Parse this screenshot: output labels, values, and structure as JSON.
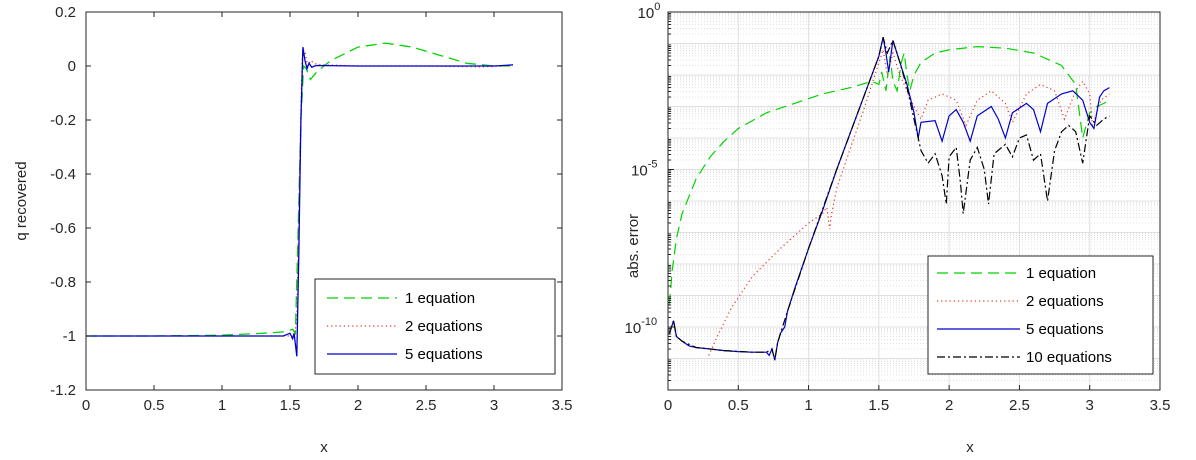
{
  "chart_data": [
    {
      "type": "line",
      "xlabel": "x",
      "ylabel": "q recovered",
      "xlim": [
        0,
        3.5
      ],
      "ylim": [
        -1.2,
        0.2
      ],
      "xticks": [
        "0",
        "0.5",
        "1",
        "1.5",
        "2",
        "2.5",
        "3",
        "3.5"
      ],
      "yticks": [
        "0.2",
        "0",
        "-0.2",
        "-0.4",
        "-0.6",
        "-0.8",
        "-1",
        "-1.2"
      ],
      "grid": false,
      "legend_position": "bottom-right",
      "series": [
        {
          "name": "1 equation",
          "color": "#00d400",
          "style": "dashed",
          "points": [
            [
              0,
              -1
            ],
            [
              0.5,
              -1
            ],
            [
              1.0,
              -0.997
            ],
            [
              1.3,
              -0.99
            ],
            [
              1.45,
              -0.985
            ],
            [
              1.52,
              -0.975
            ],
            [
              1.54,
              -0.99
            ],
            [
              1.56,
              -0.6
            ],
            [
              1.58,
              -0.2
            ],
            [
              1.6,
              0.0
            ],
            [
              1.62,
              -0.01
            ],
            [
              1.65,
              -0.05
            ],
            [
              1.7,
              -0.02
            ],
            [
              1.75,
              0.0
            ],
            [
              1.8,
              0.02
            ],
            [
              2.0,
              0.07
            ],
            [
              2.2,
              0.085
            ],
            [
              2.4,
              0.07
            ],
            [
              2.6,
              0.04
            ],
            [
              2.8,
              0.01
            ],
            [
              3.0,
              0.0
            ],
            [
              3.14,
              0.0
            ]
          ]
        },
        {
          "name": "2 equations",
          "color": "#e8352a",
          "style": "dotted",
          "points": [
            [
              0,
              -1
            ],
            [
              1.4,
              -1
            ],
            [
              1.5,
              -1.0
            ],
            [
              1.52,
              -1.01
            ],
            [
              1.55,
              -0.95
            ],
            [
              1.57,
              -0.4
            ],
            [
              1.59,
              0.03
            ],
            [
              1.61,
              0.05
            ],
            [
              1.63,
              0.0
            ],
            [
              1.65,
              0.02
            ],
            [
              1.7,
              0.005
            ],
            [
              2.0,
              0.0
            ],
            [
              2.5,
              0.0
            ],
            [
              2.9,
              -0.003
            ],
            [
              3.0,
              -0.002
            ],
            [
              3.14,
              0.004
            ]
          ]
        },
        {
          "name": "5 equations",
          "color": "#0000cc",
          "style": "solid",
          "points": [
            [
              0,
              -1
            ],
            [
              1.0,
              -1
            ],
            [
              1.45,
              -1.0
            ],
            [
              1.5,
              -0.99
            ],
            [
              1.52,
              -1.01
            ],
            [
              1.53,
              -0.99
            ],
            [
              1.55,
              -1.075
            ],
            [
              1.565,
              -0.7
            ],
            [
              1.58,
              -0.2
            ],
            [
              1.595,
              0.07
            ],
            [
              1.61,
              0.02
            ],
            [
              1.625,
              -0.01
            ],
            [
              1.64,
              0.01
            ],
            [
              1.66,
              -0.005
            ],
            [
              1.68,
              0.0
            ],
            [
              1.7,
              0.002
            ],
            [
              2.0,
              0.0
            ],
            [
              3.0,
              0.0
            ],
            [
              3.14,
              0.004
            ]
          ]
        }
      ]
    },
    {
      "type": "line",
      "xlabel": "x",
      "ylabel": "abs. error",
      "xlim": [
        0,
        3.5
      ],
      "ylim_log10": [
        -12,
        0
      ],
      "yscale": "log",
      "xticks": [
        "0",
        "0.5",
        "1",
        "1.5",
        "2",
        "2.5",
        "3",
        "3.5"
      ],
      "yticks": [
        {
          "base": "10",
          "exp": "0",
          "value": 0
        },
        {
          "base": "10",
          "exp": "-5",
          "value": -5
        },
        {
          "base": "10",
          "exp": "-10",
          "value": -10
        }
      ],
      "grid": true,
      "legend_position": "bottom-right",
      "series": [
        {
          "name": "1 equation",
          "color": "#00d400",
          "style": "dashed",
          "points_log10": [
            [
              0.01,
              -9.3
            ],
            [
              0.03,
              -8.2
            ],
            [
              0.06,
              -7.2
            ],
            [
              0.1,
              -6.4
            ],
            [
              0.2,
              -5.3
            ],
            [
              0.3,
              -4.6
            ],
            [
              0.4,
              -4.1
            ],
            [
              0.5,
              -3.7
            ],
            [
              0.7,
              -3.2
            ],
            [
              0.9,
              -2.9
            ],
            [
              1.1,
              -2.6
            ],
            [
              1.3,
              -2.4
            ],
            [
              1.45,
              -2.2
            ],
            [
              1.5,
              -2.3
            ],
            [
              1.52,
              -1.9
            ],
            [
              1.55,
              -2.5
            ],
            [
              1.58,
              -1.4
            ],
            [
              1.6,
              -2.2
            ],
            [
              1.63,
              -2.5
            ],
            [
              1.66,
              -1.6
            ],
            [
              1.68,
              -1.3
            ],
            [
              1.7,
              -2.0
            ],
            [
              1.72,
              -2.5
            ],
            [
              1.75,
              -2.0
            ],
            [
              1.8,
              -1.6
            ],
            [
              1.9,
              -1.3
            ],
            [
              2.0,
              -1.2
            ],
            [
              2.2,
              -1.1
            ],
            [
              2.4,
              -1.15
            ],
            [
              2.6,
              -1.3
            ],
            [
              2.8,
              -1.7
            ],
            [
              2.9,
              -2.3
            ],
            [
              2.95,
              -4.0
            ],
            [
              3.0,
              -3.2
            ],
            [
              3.05,
              -3.0
            ],
            [
              3.1,
              -2.9
            ],
            [
              3.14,
              -2.8
            ]
          ]
        },
        {
          "name": "2 equations",
          "color": "#e8352a",
          "style": "dotted",
          "points_log10": [
            [
              0.29,
              -10.9
            ],
            [
              0.35,
              -10.3
            ],
            [
              0.45,
              -9.4
            ],
            [
              0.6,
              -8.4
            ],
            [
              0.8,
              -7.5
            ],
            [
              1.0,
              -6.7
            ],
            [
              1.1,
              -6.4
            ],
            [
              1.13,
              -6.2
            ],
            [
              1.15,
              -6.9
            ],
            [
              1.16,
              -6.5
            ],
            [
              1.2,
              -5.6
            ],
            [
              1.3,
              -4.3
            ],
            [
              1.4,
              -3.0
            ],
            [
              1.5,
              -1.6
            ],
            [
              1.53,
              -1.2
            ],
            [
              1.56,
              -2.0
            ],
            [
              1.6,
              -1.3
            ],
            [
              1.65,
              -2.0
            ],
            [
              1.7,
              -2.5
            ],
            [
              1.75,
              -3.0
            ],
            [
              1.8,
              -3.4
            ],
            [
              1.85,
              -2.8
            ],
            [
              1.95,
              -2.6
            ],
            [
              2.05,
              -2.8
            ],
            [
              2.12,
              -3.6
            ],
            [
              2.2,
              -2.8
            ],
            [
              2.3,
              -2.5
            ],
            [
              2.4,
              -2.9
            ],
            [
              2.45,
              -3.5
            ],
            [
              2.55,
              -2.6
            ],
            [
              2.65,
              -2.3
            ],
            [
              2.75,
              -2.5
            ],
            [
              2.82,
              -3.4
            ],
            [
              2.9,
              -2.5
            ],
            [
              2.95,
              -2.2
            ],
            [
              3.0,
              -2.6
            ],
            [
              3.02,
              -3.6
            ],
            [
              3.08,
              -2.8
            ],
            [
              3.14,
              -2.6
            ]
          ]
        },
        {
          "name": "5 equations",
          "color": "#0000cc",
          "style": "solid",
          "points_log10": [
            [
              0.01,
              -10.2
            ],
            [
              0.04,
              -9.8
            ],
            [
              0.06,
              -10.3
            ],
            [
              0.1,
              -10.45
            ],
            [
              0.15,
              -10.6
            ],
            [
              0.2,
              -10.65
            ],
            [
              0.3,
              -10.7
            ],
            [
              0.4,
              -10.75
            ],
            [
              0.5,
              -10.78
            ],
            [
              0.6,
              -10.8
            ],
            [
              0.7,
              -10.8
            ],
            [
              0.72,
              -10.9
            ],
            [
              0.74,
              -10.7
            ],
            [
              0.76,
              -11.05
            ],
            [
              0.78,
              -10.5
            ],
            [
              0.8,
              -10.2
            ],
            [
              0.83,
              -10.0
            ],
            [
              0.85,
              -9.5
            ],
            [
              0.9,
              -8.8
            ],
            [
              1.0,
              -7.5
            ],
            [
              1.1,
              -6.3
            ],
            [
              1.2,
              -5.0
            ],
            [
              1.3,
              -3.8
            ],
            [
              1.4,
              -2.6
            ],
            [
              1.5,
              -1.4
            ],
            [
              1.53,
              -0.8
            ],
            [
              1.55,
              -1.3
            ],
            [
              1.57,
              -1.9
            ],
            [
              1.6,
              -0.9
            ],
            [
              1.65,
              -1.6
            ],
            [
              1.7,
              -2.3
            ],
            [
              1.75,
              -3.2
            ],
            [
              1.78,
              -4.0
            ],
            [
              1.8,
              -3.5
            ],
            [
              1.9,
              -3.45
            ],
            [
              1.95,
              -4.1
            ],
            [
              2.0,
              -3.3
            ],
            [
              2.05,
              -3.1
            ],
            [
              2.1,
              -3.5
            ],
            [
              2.15,
              -4.1
            ],
            [
              2.2,
              -3.3
            ],
            [
              2.3,
              -3.0
            ],
            [
              2.35,
              -3.4
            ],
            [
              2.4,
              -4.0
            ],
            [
              2.45,
              -3.2
            ],
            [
              2.55,
              -2.9
            ],
            [
              2.6,
              -3.1
            ],
            [
              2.65,
              -3.8
            ],
            [
              2.7,
              -2.9
            ],
            [
              2.8,
              -2.6
            ],
            [
              2.88,
              -2.5
            ],
            [
              2.95,
              -2.8
            ],
            [
              3.0,
              -3.5
            ],
            [
              3.03,
              -3.7
            ],
            [
              3.07,
              -2.7
            ],
            [
              3.1,
              -2.5
            ],
            [
              3.14,
              -2.4
            ]
          ]
        },
        {
          "name": "10 equations",
          "color": "#000000",
          "style": "dashdot",
          "points_log10": [
            [
              0.01,
              -10.2
            ],
            [
              0.04,
              -9.8
            ],
            [
              0.06,
              -10.3
            ],
            [
              0.1,
              -10.45
            ],
            [
              0.2,
              -10.65
            ],
            [
              0.4,
              -10.75
            ],
            [
              0.6,
              -10.8
            ],
            [
              0.7,
              -10.8
            ],
            [
              0.74,
              -10.7
            ],
            [
              0.76,
              -11.05
            ],
            [
              0.78,
              -10.5
            ],
            [
              0.8,
              -10.2
            ],
            [
              0.85,
              -9.5
            ],
            [
              1.0,
              -7.5
            ],
            [
              1.2,
              -5.0
            ],
            [
              1.4,
              -2.6
            ],
            [
              1.5,
              -1.4
            ],
            [
              1.53,
              -0.8
            ],
            [
              1.56,
              -1.3
            ],
            [
              1.6,
              -0.9
            ],
            [
              1.65,
              -1.6
            ],
            [
              1.7,
              -2.4
            ],
            [
              1.75,
              -3.4
            ],
            [
              1.8,
              -4.4
            ],
            [
              1.85,
              -4.8
            ],
            [
              1.9,
              -4.5
            ],
            [
              1.95,
              -5.2
            ],
            [
              1.98,
              -6.1
            ],
            [
              2.0,
              -4.6
            ],
            [
              2.05,
              -4.3
            ],
            [
              2.08,
              -5.4
            ],
            [
              2.1,
              -6.4
            ],
            [
              2.15,
              -4.7
            ],
            [
              2.2,
              -4.3
            ],
            [
              2.25,
              -5.0
            ],
            [
              2.28,
              -6.1
            ],
            [
              2.32,
              -4.5
            ],
            [
              2.4,
              -4.2
            ],
            [
              2.45,
              -4.6
            ],
            [
              2.5,
              -4.0
            ],
            [
              2.55,
              -3.9
            ],
            [
              2.6,
              -4.7
            ],
            [
              2.65,
              -4.5
            ],
            [
              2.7,
              -6.0
            ],
            [
              2.75,
              -4.4
            ],
            [
              2.8,
              -3.8
            ],
            [
              2.85,
              -3.6
            ],
            [
              2.9,
              -3.8
            ],
            [
              2.95,
              -4.8
            ],
            [
              3.0,
              -3.3
            ],
            [
              3.05,
              -3.6
            ],
            [
              3.1,
              -3.4
            ],
            [
              3.14,
              -3.3
            ]
          ]
        }
      ]
    }
  ]
}
